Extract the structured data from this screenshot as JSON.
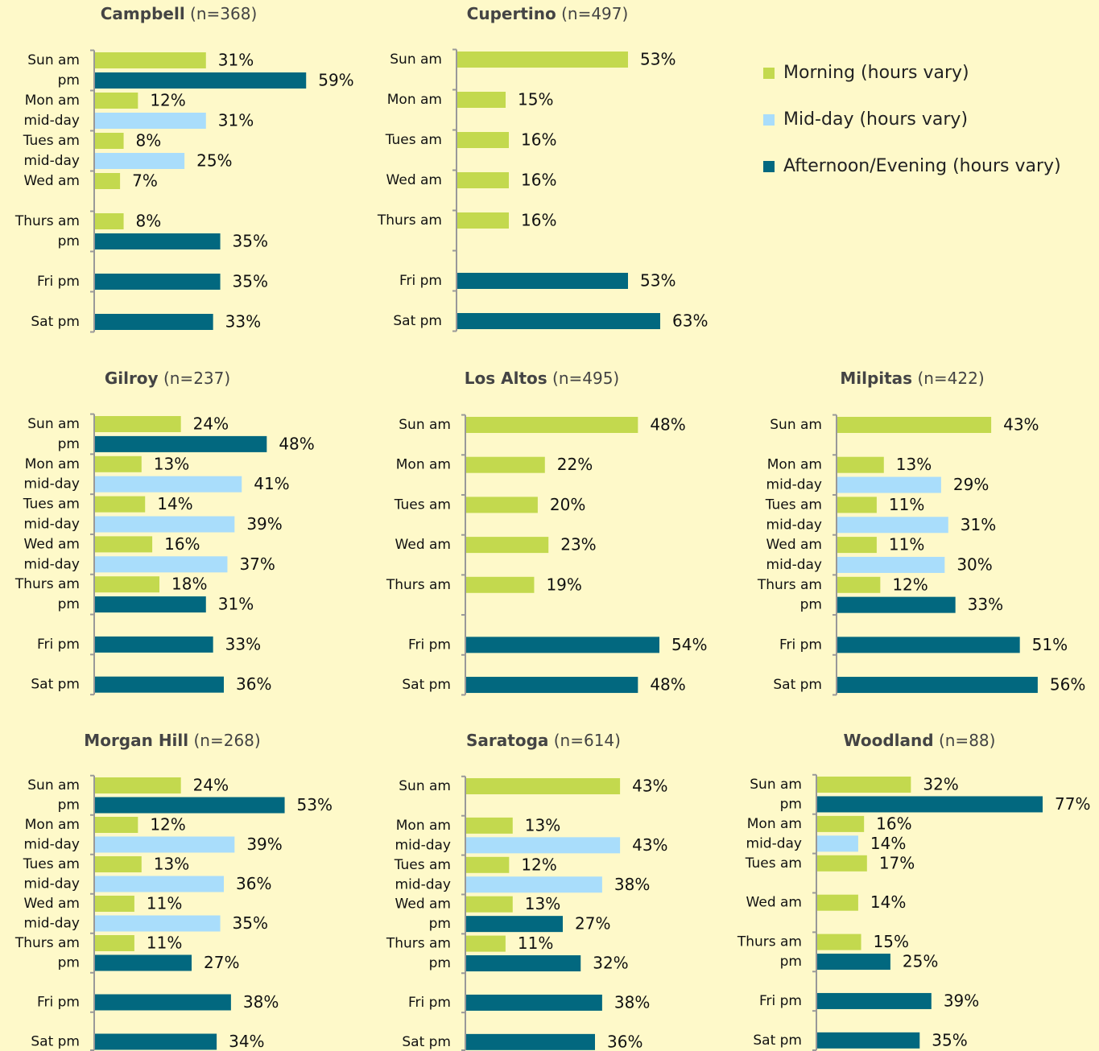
{
  "chart_data": [
    {
      "type": "bar",
      "title": "Campbell",
      "sample": "(n=368)",
      "xlim": [
        0,
        63
      ],
      "categories": [
        "Sun am",
        "pm",
        "Mon am",
        "mid-day",
        "Tues am",
        "mid-day",
        "Wed am",
        null,
        "Thurs am",
        "pm",
        null,
        "Fri pm",
        null,
        "Sat pm"
      ],
      "values": [
        31,
        59,
        12,
        31,
        8,
        25,
        7,
        null,
        8,
        35,
        null,
        35,
        null,
        33
      ],
      "value_labels": [
        "31%",
        "59%",
        "12%",
        "31%",
        "8%",
        "25%",
        "7%",
        null,
        "8%",
        "35%",
        null,
        "35%",
        null,
        "33%"
      ],
      "colors": [
        "#c3d94e",
        "#02687f",
        "#c3d94e",
        "#a9ddfb",
        "#c3d94e",
        "#a9ddfb",
        "#c3d94e",
        null,
        "#c3d94e",
        "#02687f",
        null,
        "#02687f",
        null,
        "#02687f"
      ]
    },
    {
      "type": "bar",
      "title": "Cupertino",
      "sample": "(n=497)",
      "xlim": [
        0,
        70
      ],
      "categories": [
        "Sun am",
        null,
        "Mon am",
        null,
        "Tues am",
        null,
        "Wed am",
        null,
        "Thurs am",
        null,
        null,
        "Fri pm",
        null,
        "Sat pm"
      ],
      "values": [
        53,
        null,
        15,
        null,
        16,
        null,
        16,
        null,
        16,
        null,
        null,
        53,
        null,
        63
      ],
      "value_labels": [
        "53%",
        null,
        "15%",
        null,
        "16%",
        null,
        "16%",
        null,
        "16%",
        null,
        null,
        "53%",
        null,
        "63%"
      ],
      "colors": [
        "#c3d94e",
        null,
        "#c3d94e",
        null,
        "#c3d94e",
        null,
        "#c3d94e",
        null,
        "#c3d94e",
        null,
        null,
        "#02687f",
        null,
        "#02687f"
      ]
    },
    {
      "type": "bar",
      "title": "Gilroy",
      "sample": "(n=237)",
      "xlim": [
        0,
        63
      ],
      "categories": [
        "Sun am",
        "pm",
        "Mon am",
        "mid-day",
        "Tues am",
        "mid-day",
        "Wed am",
        "mid-day",
        "Thurs am",
        "pm",
        null,
        "Fri pm",
        null,
        "Sat pm"
      ],
      "values": [
        24,
        48,
        13,
        41,
        14,
        39,
        16,
        37,
        18,
        31,
        null,
        33,
        null,
        36
      ],
      "value_labels": [
        "24%",
        "48%",
        "13%",
        "41%",
        "14%",
        "39%",
        "16%",
        "37%",
        "18%",
        "31%",
        null,
        "33%",
        null,
        "36%"
      ],
      "colors": [
        "#c3d94e",
        "#02687f",
        "#c3d94e",
        "#a9ddfb",
        "#c3d94e",
        "#a9ddfb",
        "#c3d94e",
        "#a9ddfb",
        "#c3d94e",
        "#02687f",
        null,
        "#02687f",
        null,
        "#02687f"
      ]
    },
    {
      "type": "bar",
      "title": "Los Altos",
      "sample": "(n=495)",
      "xlim": [
        0,
        63
      ],
      "categories": [
        "Sun am",
        null,
        "Mon am",
        null,
        "Tues am",
        null,
        "Wed am",
        null,
        "Thurs am",
        null,
        null,
        "Fri pm",
        null,
        "Sat pm"
      ],
      "values": [
        48,
        null,
        22,
        null,
        20,
        null,
        23,
        null,
        19,
        null,
        null,
        54,
        null,
        48
      ],
      "value_labels": [
        "48%",
        null,
        "22%",
        null,
        "20%",
        null,
        "23%",
        null,
        "19%",
        null,
        null,
        "54%",
        null,
        "48%"
      ],
      "colors": [
        "#c3d94e",
        null,
        "#c3d94e",
        null,
        "#c3d94e",
        null,
        "#c3d94e",
        null,
        "#c3d94e",
        null,
        null,
        "#02687f",
        null,
        "#02687f"
      ]
    },
    {
      "type": "bar",
      "title": "Milpitas",
      "sample": "(n=422)",
      "xlim": [
        0,
        63
      ],
      "categories": [
        "Sun am",
        null,
        "Mon am",
        "mid-day",
        "Tues am",
        "mid-day",
        "Wed am",
        "mid-day",
        "Thurs am",
        "pm",
        null,
        "Fri pm",
        null,
        "Sat pm"
      ],
      "values": [
        43,
        null,
        13,
        29,
        11,
        31,
        11,
        30,
        12,
        33,
        null,
        51,
        null,
        56
      ],
      "value_labels": [
        "43%",
        null,
        "13%",
        "29%",
        "11%",
        "31%",
        "11%",
        "30%",
        "12%",
        "33%",
        null,
        "51%",
        null,
        "56%"
      ],
      "colors": [
        "#c3d94e",
        null,
        "#c3d94e",
        "#a9ddfb",
        "#c3d94e",
        "#a9ddfb",
        "#c3d94e",
        "#a9ddfb",
        "#c3d94e",
        "#02687f",
        null,
        "#02687f",
        null,
        "#02687f"
      ]
    },
    {
      "type": "bar",
      "title": "Morgan Hill",
      "sample": "(n=268)",
      "xlim": [
        0,
        63
      ],
      "categories": [
        "Sun am",
        "pm",
        "Mon am",
        "mid-day",
        "Tues am",
        "mid-day",
        "Wed am",
        "mid-day",
        "Thurs am",
        "pm",
        null,
        "Fri pm",
        null,
        "Sat pm"
      ],
      "values": [
        24,
        53,
        12,
        39,
        13,
        36,
        11,
        35,
        11,
        27,
        null,
        38,
        null,
        34
      ],
      "value_labels": [
        "24%",
        "53%",
        "12%",
        "39%",
        "13%",
        "36%",
        "11%",
        "35%",
        "11%",
        "27%",
        null,
        "38%",
        null,
        "34%"
      ],
      "colors": [
        "#c3d94e",
        "#02687f",
        "#c3d94e",
        "#a9ddfb",
        "#c3d94e",
        "#a9ddfb",
        "#c3d94e",
        "#a9ddfb",
        "#c3d94e",
        "#02687f",
        null,
        "#02687f",
        null,
        "#02687f"
      ]
    },
    {
      "type": "bar",
      "title": "Saratoga",
      "sample": "(n=614)",
      "xlim": [
        0,
        63
      ],
      "categories": [
        "Sun am",
        null,
        "Mon am",
        "mid-day",
        "Tues am",
        "mid-day",
        "Wed am",
        "pm",
        "Thurs am",
        "pm",
        null,
        "Fri pm",
        null,
        "Sat pm"
      ],
      "values": [
        43,
        null,
        13,
        43,
        12,
        38,
        13,
        27,
        11,
        32,
        null,
        38,
        null,
        36
      ],
      "value_labels": [
        "43%",
        null,
        "13%",
        "43%",
        "12%",
        "38%",
        "13%",
        "27%",
        "11%",
        "32%",
        null,
        "38%",
        null,
        "36%"
      ],
      "colors": [
        "#c3d94e",
        null,
        "#c3d94e",
        "#a9ddfb",
        "#c3d94e",
        "#a9ddfb",
        "#c3d94e",
        "#02687f",
        "#c3d94e",
        "#02687f",
        null,
        "#02687f",
        null,
        "#02687f"
      ]
    },
    {
      "type": "bar",
      "title": "Woodland",
      "sample": "(n=88)",
      "xlim": [
        0,
        77
      ],
      "categories": [
        "Sun am",
        "pm",
        "Mon am",
        "mid-day",
        "Tues am",
        null,
        "Wed am",
        null,
        "Thurs am",
        "pm",
        null,
        "Fri pm",
        null,
        "Sat pm"
      ],
      "values": [
        32,
        77,
        16,
        14,
        17,
        null,
        14,
        null,
        15,
        25,
        null,
        39,
        null,
        35
      ],
      "value_labels": [
        "32%",
        "77%",
        "16%",
        "14%",
        "17%",
        null,
        "14%",
        null,
        "15%",
        "25%",
        null,
        "39%",
        null,
        "35%"
      ],
      "colors": [
        "#c3d94e",
        "#02687f",
        "#c3d94e",
        "#a9ddfb",
        "#c3d94e",
        null,
        "#c3d94e",
        null,
        "#c3d94e",
        "#02687f",
        null,
        "#02687f",
        null,
        "#02687f"
      ]
    }
  ],
  "legend": [
    {
      "name": "Morning (hours vary)",
      "color": "#c3d94e"
    },
    {
      "name": "Mid-day (hours vary)",
      "color": "#a9ddfb"
    },
    {
      "name": "Afternoon/Evening (hours vary)",
      "color": "#02687f"
    }
  ]
}
